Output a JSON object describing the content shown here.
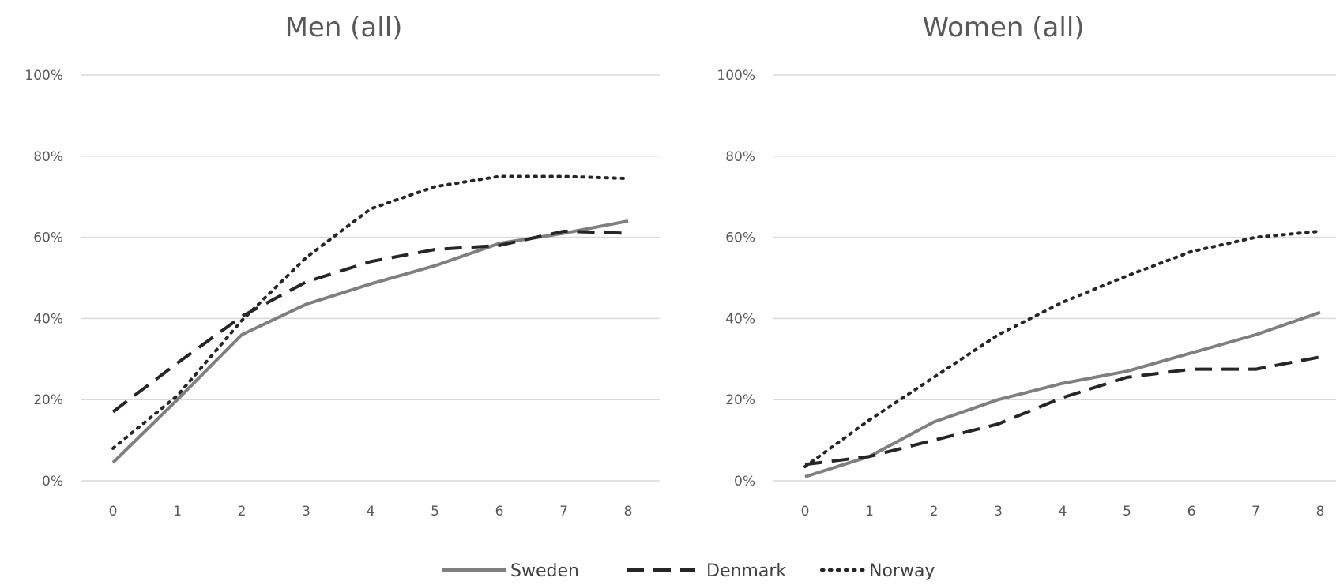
{
  "chart_data": [
    {
      "type": "line",
      "title": "Men (all)",
      "x": [
        0,
        1,
        2,
        3,
        4,
        5,
        6,
        7,
        8
      ],
      "ylim": [
        0,
        100
      ],
      "yticks": [
        "0%",
        "20%",
        "40%",
        "60%",
        "80%",
        "100%"
      ],
      "yunit": "%",
      "grid": true,
      "series": [
        {
          "name": "Sweden",
          "style": "solid",
          "color": "#7f7f7f",
          "values": [
            4.5,
            20,
            36,
            43.5,
            48.5,
            53,
            58.5,
            61,
            64
          ]
        },
        {
          "name": "Denmark",
          "style": "dashed",
          "color": "#262626",
          "values": [
            17,
            29,
            40.5,
            49,
            54,
            57,
            58,
            61.5,
            61
          ]
        },
        {
          "name": "Norway",
          "style": "dotted",
          "color": "#262626",
          "values": [
            8,
            21,
            39.5,
            55,
            67,
            72.5,
            75,
            75,
            74.5
          ]
        }
      ]
    },
    {
      "type": "line",
      "title": "Women (all)",
      "x": [
        0,
        1,
        2,
        3,
        4,
        5,
        6,
        7,
        8
      ],
      "ylim": [
        0,
        100
      ],
      "yticks": [
        "0%",
        "20%",
        "40%",
        "60%",
        "80%",
        "100%"
      ],
      "yunit": "%",
      "grid": true,
      "series": [
        {
          "name": "Sweden",
          "style": "solid",
          "color": "#7f7f7f",
          "values": [
            1,
            6,
            14.5,
            20,
            24,
            27,
            31.5,
            36,
            41.5
          ]
        },
        {
          "name": "Denmark",
          "style": "dashed",
          "color": "#262626",
          "values": [
            4,
            6,
            10,
            14,
            20.5,
            25.5,
            27.5,
            27.5,
            30.5
          ]
        },
        {
          "name": "Norway",
          "style": "dotted",
          "color": "#262626",
          "values": [
            3.5,
            15,
            25.5,
            36,
            44,
            50.5,
            56.5,
            60,
            61.5
          ]
        }
      ]
    }
  ],
  "legend": {
    "placement": "bottom-center",
    "items": [
      {
        "label": "Sweden",
        "style": "solid"
      },
      {
        "label": "Denmark",
        "style": "dashed"
      },
      {
        "label": "Norway",
        "style": "dotted"
      }
    ]
  }
}
